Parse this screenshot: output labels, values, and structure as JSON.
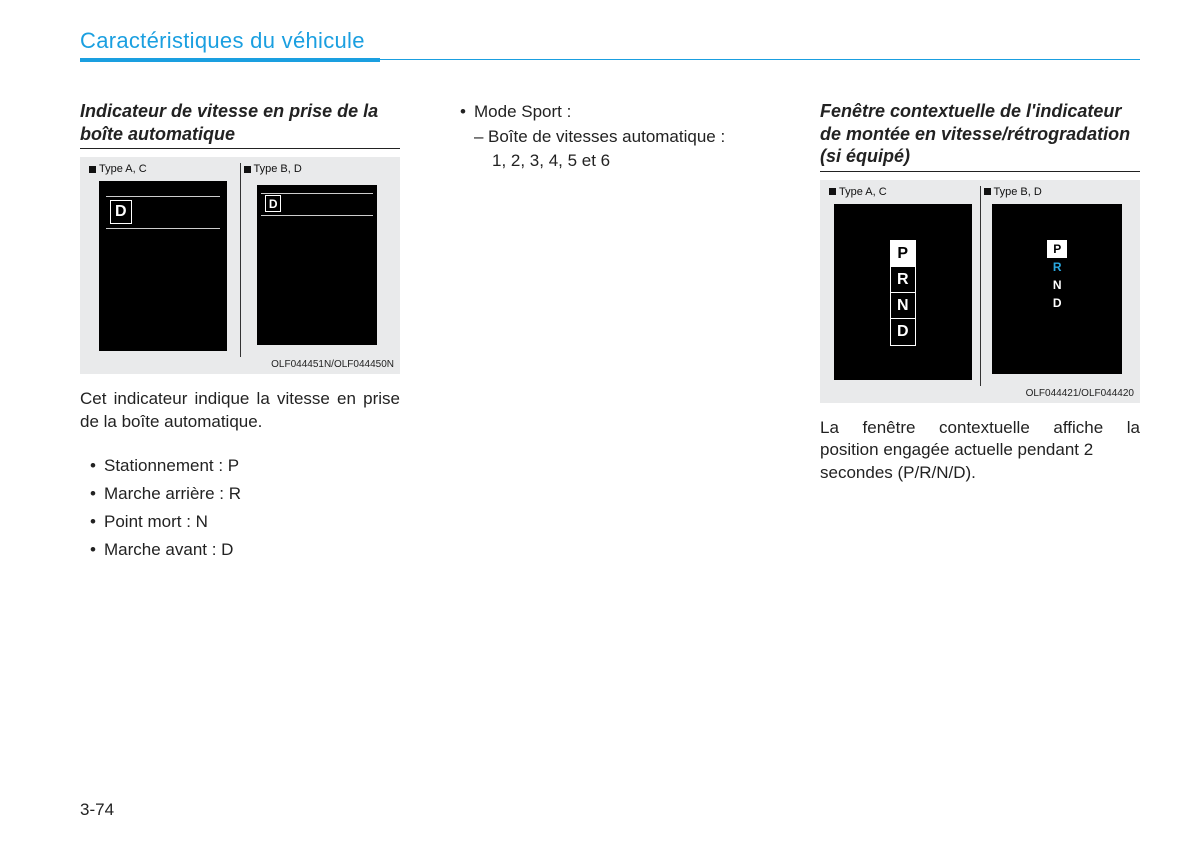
{
  "colors": {
    "accent": "#1a9fe0",
    "text": "#222222",
    "panel_bg": "#e9eaeb",
    "screen_bg": "#000000",
    "screen_fg": "#ffffff",
    "r_highlight": "#2aa8e0"
  },
  "chapter_title": "Caractéristiques du véhicule",
  "page_number": "3-74",
  "col1": {
    "heading": "Indicateur de vitesse en prise de la boîte automatique",
    "fig": {
      "left_label": "Type A, C",
      "right_label": "Type B, D",
      "d_letter": "D",
      "caption": "OLF044451N/OLF044450N"
    },
    "para": "Cet indicateur indique la vitesse en prise de la boîte automatique.",
    "bullets": [
      "Stationnement : P",
      "Marche arrière : R",
      "Point mort : N",
      "Marche avant : D"
    ]
  },
  "col2": {
    "sport_label": "Mode Sport :",
    "sport_sub": "Boîte de vitesses automatique :",
    "sport_nums": "1, 2, 3, 4, 5 et 6"
  },
  "col3": {
    "heading": "Fenêtre contextuelle de l'indicateur de montée en vitesse/rétrogradation (si équipé)",
    "fig": {
      "left_label": "Type A, C",
      "right_label": "Type B, D",
      "prnd": [
        "P",
        "R",
        "N",
        "D"
      ],
      "selected": "P",
      "caption": "OLF044421/OLF044420"
    },
    "para_line1": "La fenêtre contextuelle affiche la",
    "para_line2": "position engagée actuelle pendant 2 secondes (P/R/N/D)."
  }
}
